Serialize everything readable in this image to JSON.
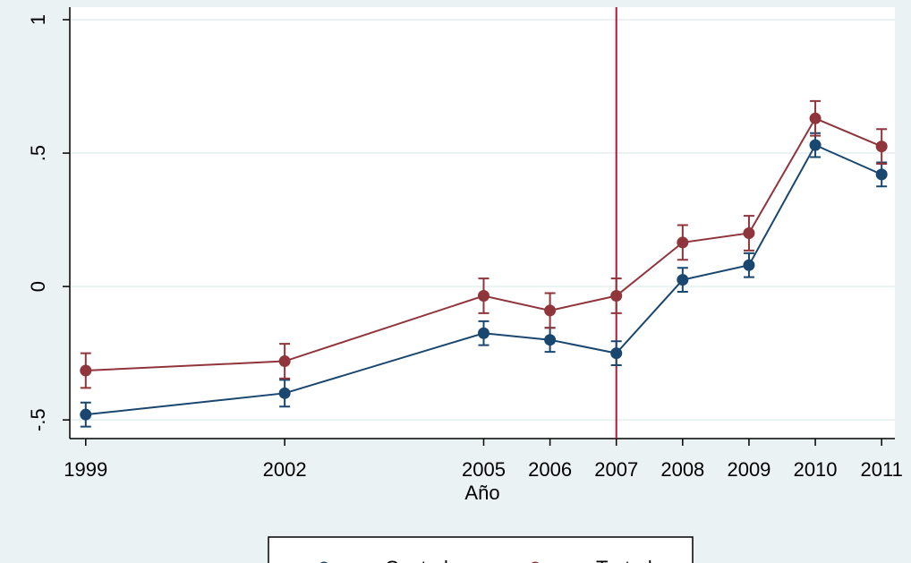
{
  "chart_data": {
    "type": "line",
    "x_label": "Año",
    "x": [
      1999,
      2002,
      2005,
      2006,
      2007,
      2008,
      2009,
      2010,
      2011
    ],
    "series": [
      {
        "name": "Control",
        "color": "#1a476f",
        "values": [
          -0.48,
          -0.4,
          -0.175,
          -0.2,
          -0.25,
          0.025,
          0.08,
          0.53,
          0.42
        ],
        "errors": [
          0.045,
          0.05,
          0.045,
          0.045,
          0.045,
          0.045,
          0.045,
          0.045,
          0.045
        ]
      },
      {
        "name": "Tratado",
        "color": "#90353b",
        "values": [
          -0.315,
          -0.28,
          -0.035,
          -0.09,
          -0.035,
          0.165,
          0.2,
          0.63,
          0.525
        ],
        "errors": [
          0.065,
          0.065,
          0.065,
          0.065,
          0.065,
          0.065,
          0.065,
          0.065,
          0.065
        ]
      }
    ],
    "xline": 2007,
    "xline_color": "#b0183a",
    "xlim": [
      1998.76,
      2011.2
    ],
    "xticks": [
      1999,
      2002,
      2005,
      2006,
      2007,
      2008,
      2009,
      2010,
      2011
    ],
    "ylim": [
      -0.57,
      1.047
    ],
    "yticks": [
      {
        "value": -0.5,
        "label": "-.5"
      },
      0,
      {
        "value": 0.5,
        "label": ".5"
      },
      1
    ],
    "grid": true,
    "legend": "bottom"
  }
}
